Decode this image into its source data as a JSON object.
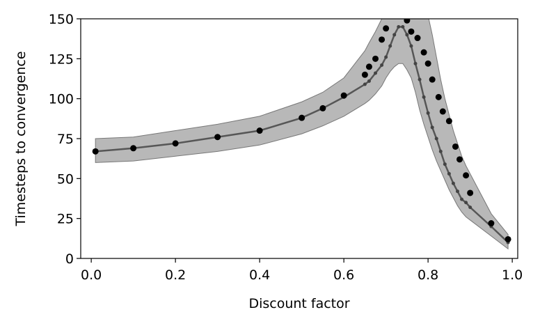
{
  "chart_data": {
    "type": "line",
    "xlabel": "Discount factor",
    "ylabel": "Timesteps to convergence",
    "xlim": [
      -0.025,
      1.013
    ],
    "ylim": [
      0,
      150
    ],
    "xticks": [
      {
        "value": 0,
        "label": "0.0"
      },
      0.2,
      0.4,
      0.6,
      0.8,
      {
        "value": 1,
        "label": "1.0"
      }
    ],
    "yticks": [
      0,
      25,
      50,
      75,
      100,
      125,
      150
    ],
    "band": {
      "color": "#9a9a9a",
      "x": [
        0.01,
        0.1,
        0.2,
        0.3,
        0.4,
        0.5,
        0.55,
        0.6,
        0.65,
        0.66,
        0.675,
        0.69,
        0.7,
        0.71,
        0.72,
        0.73,
        0.74,
        0.75,
        0.76,
        0.77,
        0.78,
        0.79,
        0.8,
        0.81,
        0.82,
        0.83,
        0.84,
        0.85,
        0.86,
        0.87,
        0.88,
        0.89,
        0.9,
        0.95,
        0.99
      ],
      "upper": [
        75,
        76,
        80,
        84,
        89,
        98,
        104,
        113,
        130,
        135,
        142,
        150,
        155,
        160,
        165,
        168,
        170,
        170,
        170,
        168,
        165,
        160,
        152,
        140,
        126,
        112,
        100,
        90,
        80,
        72,
        64,
        58,
        53,
        28,
        15
      ],
      "lower": [
        60,
        61,
        64,
        67,
        71,
        78,
        83,
        89,
        97,
        99,
        103,
        108,
        113,
        117,
        120,
        122,
        122,
        118,
        113,
        104,
        93,
        84,
        76,
        68,
        61,
        55,
        49,
        43,
        38,
        33,
        29,
        26,
        24,
        14,
        6
      ]
    },
    "series": [
      {
        "color": "#444444",
        "x": [
          0.01,
          0.1,
          0.2,
          0.3,
          0.4,
          0.5,
          0.55,
          0.6,
          0.65,
          0.66,
          0.675,
          0.69,
          0.7,
          0.71,
          0.72,
          0.73,
          0.74,
          0.75,
          0.76,
          0.77,
          0.78,
          0.79,
          0.8,
          0.81,
          0.82,
          0.83,
          0.84,
          0.85,
          0.86,
          0.87,
          0.88,
          0.89,
          0.9,
          0.95,
          0.99
        ],
        "values": [
          67,
          69,
          72,
          76,
          80,
          88,
          94,
          101,
          109,
          111,
          116,
          121,
          126,
          133,
          140,
          145,
          145,
          140,
          133,
          122,
          112,
          101,
          91,
          82,
          75,
          67,
          59,
          53,
          47,
          42,
          37,
          35,
          32,
          20,
          10
        ]
      },
      {
        "color": "#000000",
        "x": [
          0.01,
          0.1,
          0.2,
          0.3,
          0.4,
          0.5,
          0.55,
          0.6,
          0.65,
          0.66,
          0.675,
          0.69,
          0.7,
          0.75,
          0.76,
          0.775,
          0.79,
          0.8,
          0.81,
          0.825,
          0.835,
          0.85,
          0.865,
          0.875,
          0.89,
          0.9,
          0.95,
          0.99
        ],
        "values": [
          67,
          69,
          72,
          76,
          80,
          88,
          94,
          102,
          115,
          120,
          125,
          137,
          144,
          149,
          142,
          138,
          129,
          122,
          112,
          101,
          92,
          86,
          70,
          62,
          52,
          41,
          22,
          12
        ]
      }
    ]
  }
}
